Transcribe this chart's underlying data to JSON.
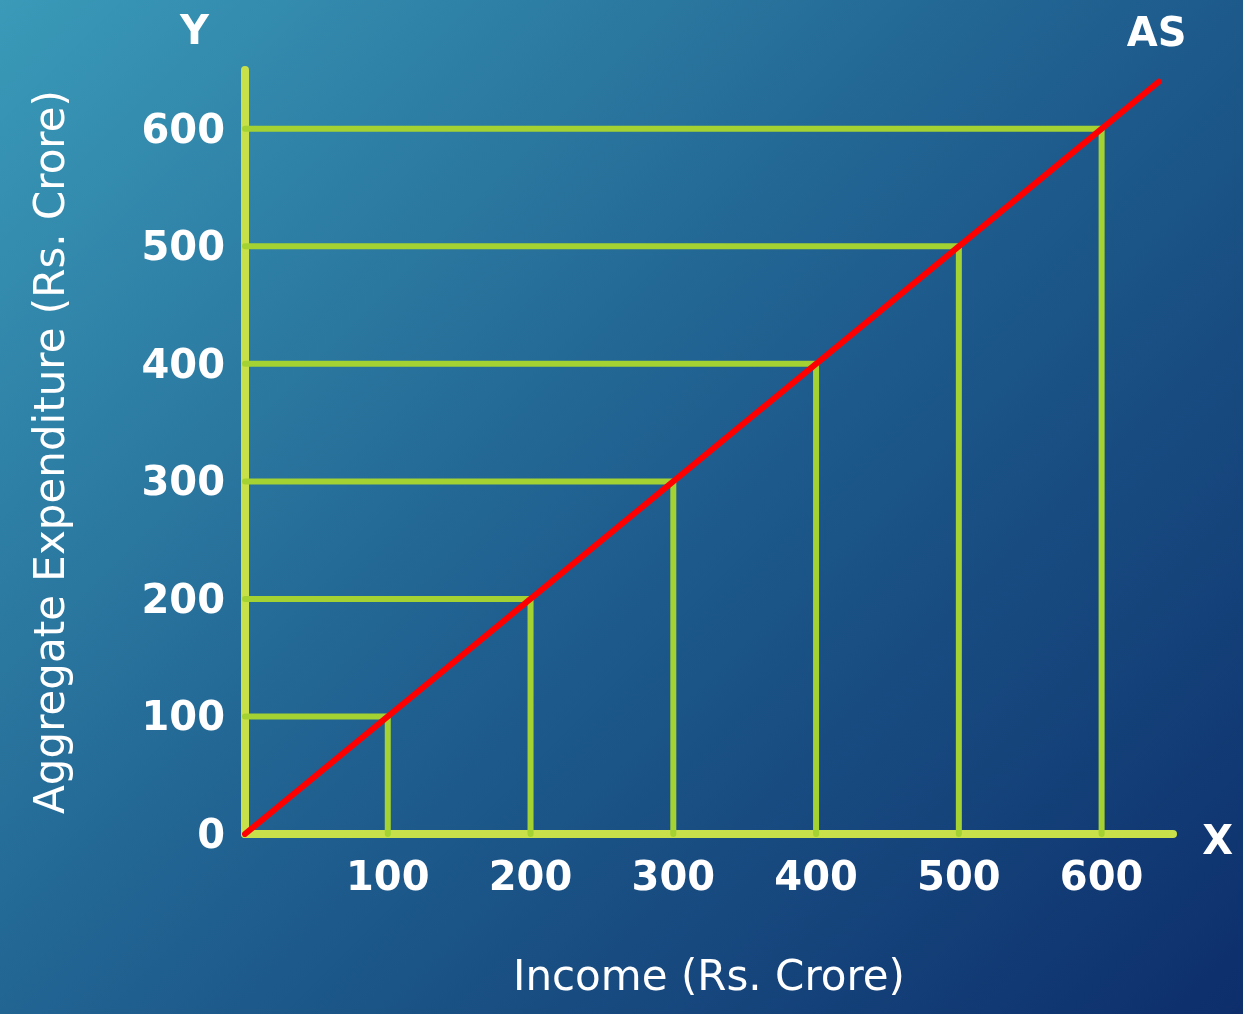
{
  "chart_data": {
    "type": "line",
    "xlabel": "Income (Rs. Crore)",
    "ylabel": "Aggregate Expenditure (Rs. Crore)",
    "xlim": [
      0,
      650
    ],
    "ylim": [
      0,
      650
    ],
    "xticks": [
      100,
      200,
      300,
      400,
      500,
      600
    ],
    "yticks": [
      0,
      100,
      200,
      300,
      400,
      500,
      600
    ],
    "grid": false,
    "marker": "none",
    "line_style": "solid",
    "annotations": [
      "Y",
      "X"
    ],
    "series": [
      {
        "name": "AS",
        "color": "#ff0000",
        "x": [
          0,
          640
        ],
        "values": [
          0,
          640
        ]
      },
      {
        "color": "#a4d233",
        "x": [
          0,
          100,
          100
        ],
        "values": [
          100,
          100,
          0
        ]
      },
      {
        "color": "#a4d233",
        "x": [
          0,
          200,
          200
        ],
        "values": [
          200,
          200,
          0
        ]
      },
      {
        "color": "#a4d233",
        "x": [
          0,
          300,
          300
        ],
        "values": [
          300,
          300,
          0
        ]
      },
      {
        "color": "#a4d233",
        "x": [
          0,
          400,
          400
        ],
        "values": [
          400,
          400,
          0
        ]
      },
      {
        "color": "#a4d233",
        "x": [
          0,
          500,
          500
        ],
        "values": [
          500,
          500,
          0
        ]
      },
      {
        "color": "#a4d233",
        "x": [
          0,
          600,
          600
        ],
        "values": [
          600,
          600,
          0
        ]
      }
    ]
  }
}
